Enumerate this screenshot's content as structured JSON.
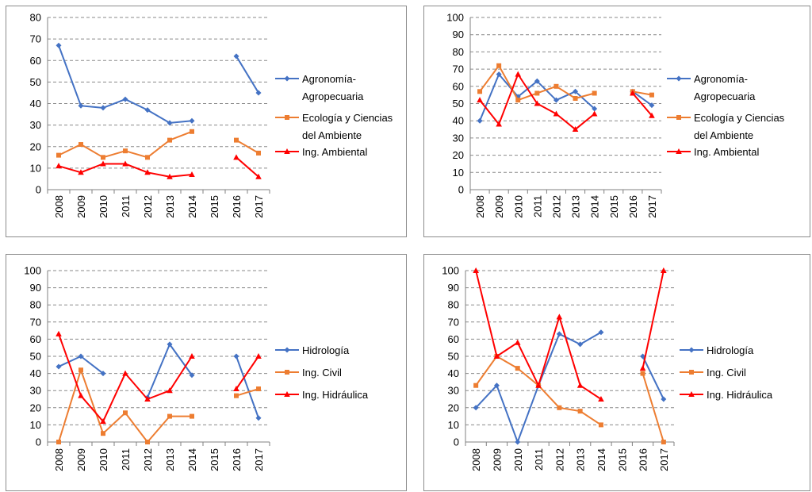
{
  "chart_data": [
    {
      "type": "line",
      "categories": [
        "2008",
        "2009",
        "2010",
        "2011",
        "2012",
        "2013",
        "2014",
        "2015",
        "2016",
        "2017"
      ],
      "ylim": [
        0,
        80
      ],
      "ystep": 10,
      "grid": true,
      "legend_position": "right",
      "series": [
        {
          "name": "Agronomía-Agropecuaria",
          "color": "#4472c4",
          "marker": "diamond",
          "values": [
            67,
            39,
            38,
            42,
            37,
            31,
            32,
            null,
            62,
            45
          ]
        },
        {
          "name": "Ecología y Ciencias del Ambiente",
          "color": "#ed7d31",
          "marker": "square",
          "values": [
            16,
            21,
            15,
            18,
            15,
            23,
            27,
            null,
            23,
            17
          ]
        },
        {
          "name": "Ing. Ambiental",
          "color": "#ff0000",
          "marker": "triangle",
          "values": [
            11,
            8,
            12,
            12,
            8,
            6,
            7,
            null,
            15,
            6
          ]
        }
      ]
    },
    {
      "type": "line",
      "categories": [
        "2008",
        "2009",
        "2010",
        "2011",
        "2012",
        "2013",
        "2014",
        "2015",
        "2016",
        "2017"
      ],
      "ylim": [
        0,
        100
      ],
      "ystep": 10,
      "grid": true,
      "legend_position": "right",
      "series": [
        {
          "name": "Agronomía-Agropecuaria",
          "color": "#4472c4",
          "marker": "diamond",
          "values": [
            40,
            67,
            54,
            63,
            52,
            57,
            47,
            null,
            57,
            49
          ]
        },
        {
          "name": "Ecología y Ciencias del Ambiente",
          "color": "#ed7d31",
          "marker": "square",
          "values": [
            57,
            72,
            52,
            56,
            60,
            53,
            56,
            null,
            57,
            55
          ]
        },
        {
          "name": "Ing. Ambiental",
          "color": "#ff0000",
          "marker": "triangle",
          "values": [
            52,
            38,
            67,
            50,
            44,
            35,
            44,
            null,
            56,
            43
          ]
        }
      ]
    },
    {
      "type": "line",
      "categories": [
        "2008",
        "2009",
        "2010",
        "2011",
        "2012",
        "2013",
        "2014",
        "2015",
        "2016",
        "2017"
      ],
      "ylim": [
        0,
        100
      ],
      "ystep": 10,
      "grid": true,
      "legend_position": "right",
      "series": [
        {
          "name": "Hidrología",
          "color": "#4472c4",
          "marker": "diamond",
          "values": [
            44,
            50,
            40,
            null,
            26,
            57,
            39,
            null,
            50,
            14
          ]
        },
        {
          "name": "Ing. Civil",
          "color": "#ed7d31",
          "marker": "square",
          "values": [
            0,
            42,
            5,
            17,
            0,
            15,
            15,
            null,
            27,
            31
          ]
        },
        {
          "name": "Ing. Hidráulica",
          "color": "#ff0000",
          "marker": "triangle",
          "values": [
            63,
            27,
            12,
            40,
            25,
            30,
            50,
            null,
            31,
            50
          ]
        }
      ]
    },
    {
      "type": "line",
      "categories": [
        "2008",
        "2009",
        "2010",
        "2011",
        "2012",
        "2013",
        "2014",
        "2015",
        "2016",
        "2017"
      ],
      "ylim": [
        0,
        100
      ],
      "ystep": 10,
      "grid": true,
      "legend_position": "right",
      "series": [
        {
          "name": "Hidrología",
          "color": "#4472c4",
          "marker": "diamond",
          "values": [
            20,
            33,
            0,
            33,
            63,
            57,
            64,
            null,
            50,
            25
          ]
        },
        {
          "name": "Ing. Civil",
          "color": "#ed7d31",
          "marker": "square",
          "values": [
            33,
            50,
            43,
            33,
            20,
            18,
            10,
            null,
            40,
            0
          ]
        },
        {
          "name": "Ing. Hidráulica",
          "color": "#ff0000",
          "marker": "triangle",
          "values": [
            100,
            50,
            58,
            33,
            73,
            33,
            25,
            null,
            43,
            100
          ]
        }
      ]
    }
  ]
}
